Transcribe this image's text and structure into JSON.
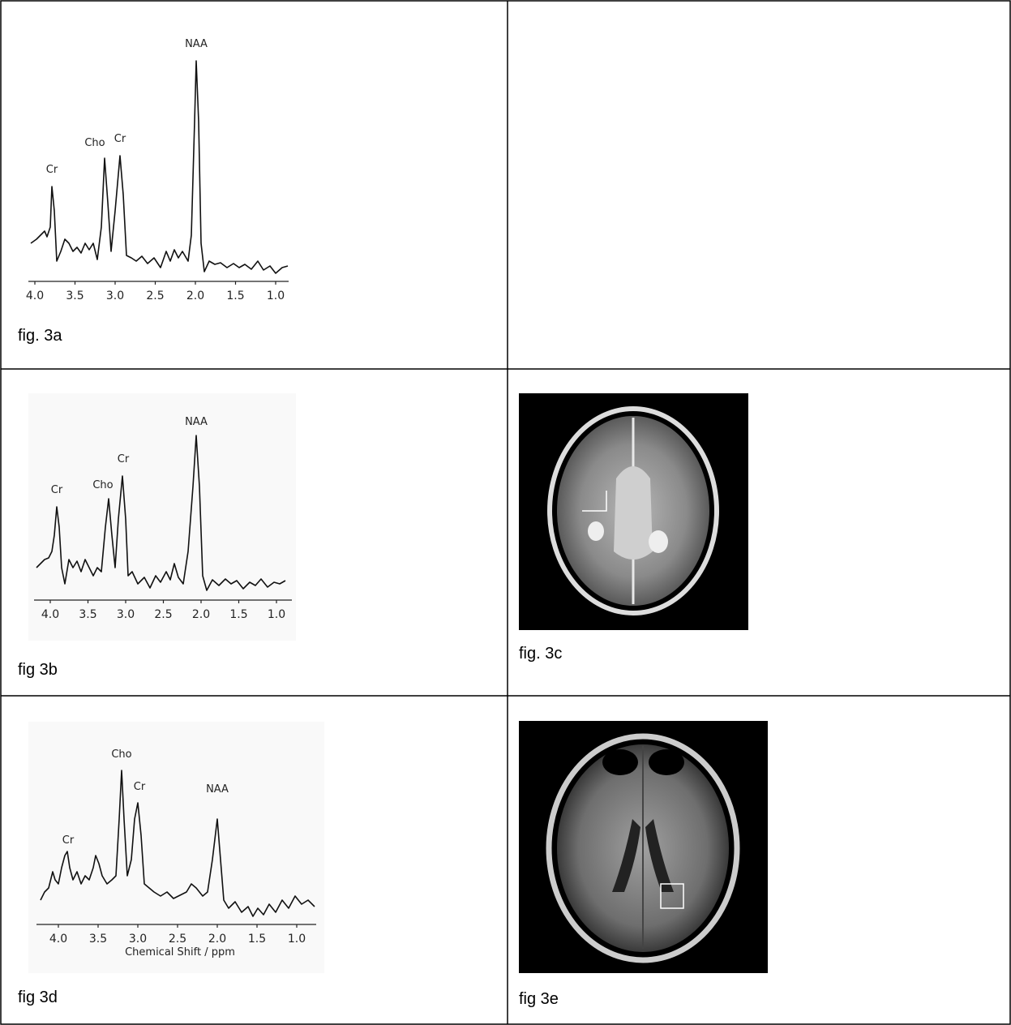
{
  "cells": [
    {
      "caption": "fig. 3a",
      "peak_labels": [
        "Cr",
        "Cho",
        "Cr",
        "NAA"
      ],
      "tick_labels": [
        "4.0",
        "3.5",
        "3.0",
        "2.5",
        "2.0",
        "1.5",
        "1.0"
      ]
    },
    {
      "caption": "fig 3b",
      "peak_labels": [
        "Cr",
        "Cho",
        "Cr",
        "NAA"
      ],
      "tick_labels": [
        "4.0",
        "3.5",
        "3.0",
        "2.5",
        "2.0",
        "1.5",
        "1.0"
      ]
    },
    {
      "caption": "fig. 3c"
    },
    {
      "caption": "fig 3d",
      "peak_labels": [
        "Cr",
        "Cho",
        "Cr",
        "NAA"
      ],
      "tick_labels": [
        "4.0",
        "3.5",
        "3.0",
        "2.5",
        "2.0",
        "1.5",
        "1.0"
      ],
      "axis_label": "Chemical Shift / ppm"
    },
    {
      "caption": "fig 3e"
    }
  ]
}
